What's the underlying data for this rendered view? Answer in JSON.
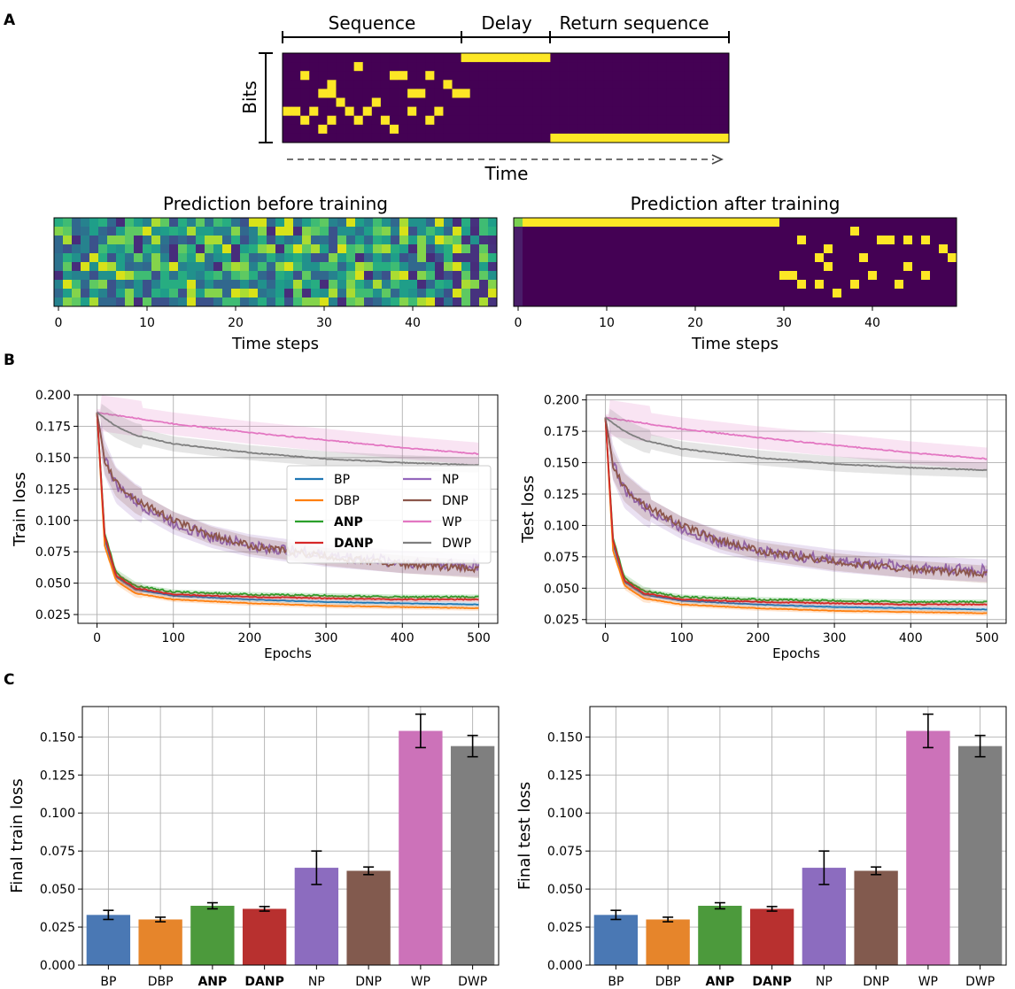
{
  "panels": {
    "a": "A",
    "b": "B",
    "c": "C"
  },
  "colors": {
    "BP": "#1f77b4",
    "DBP": "#ff7f0e",
    "ANP": "#2ca02c",
    "DANP": "#d62728",
    "NP": "#9467bd",
    "DNP": "#8c564b",
    "WP": "#e377c2",
    "DWP": "#7f7f7f",
    "bar_BP": "#4a78b4",
    "bar_DBP": "#e6852b",
    "bar_ANP": "#4c9a3c",
    "bar_DANP": "#b8302f",
    "bar_NP": "#8c6cbf",
    "bar_DNP": "#825a4e",
    "bar_WP": "#cc72b9",
    "bar_DWP": "#7f7f7f",
    "heat_bg": "#440154",
    "heat_on": "#fde725",
    "grid": "#b0b0b0"
  },
  "panel_a": {
    "seq_label": "Sequence",
    "delay_label": "Delay",
    "return_label": "Return sequence",
    "bits_label": "Bits",
    "time_label": "Time",
    "task": {
      "cols": 50,
      "rows": 10,
      "cells": [
        [
          2,
          2
        ],
        [
          8,
          1
        ],
        [
          12,
          2
        ],
        [
          13,
          2
        ],
        [
          14,
          4
        ],
        [
          15,
          4
        ],
        [
          16,
          2
        ],
        [
          4,
          4
        ],
        [
          5,
          4
        ],
        [
          19,
          4
        ],
        [
          5,
          3
        ],
        [
          18,
          3
        ],
        [
          20,
          4
        ],
        [
          1,
          6
        ],
        [
          6,
          5
        ],
        [
          10,
          5
        ],
        [
          14,
          6
        ],
        [
          17,
          6
        ],
        [
          3,
          6
        ],
        [
          2,
          7
        ],
        [
          7,
          6
        ],
        [
          11,
          7
        ],
        [
          16,
          7
        ],
        [
          0,
          6
        ],
        [
          8,
          7
        ],
        [
          4,
          8
        ],
        [
          12,
          8
        ],
        [
          5,
          7
        ],
        [
          9,
          6
        ]
      ],
      "delay_row": 0,
      "delay_cols": [
        20,
        30
      ],
      "return_row": 9,
      "return_cols": [
        30,
        50
      ]
    },
    "before": {
      "title": "Prediction before training",
      "xlabel": "Time steps",
      "xticks": [
        0,
        10,
        20,
        30,
        40
      ]
    },
    "after": {
      "title": "Prediction after training",
      "xlabel": "Time steps",
      "xticks": [
        0,
        10,
        20,
        30,
        40
      ],
      "cells": [
        [
          32,
          2
        ],
        [
          38,
          1
        ],
        [
          41,
          2
        ],
        [
          42,
          2
        ],
        [
          44,
          2
        ],
        [
          46,
          2
        ],
        [
          35,
          3
        ],
        [
          34,
          4
        ],
        [
          31,
          6
        ],
        [
          35,
          5
        ],
        [
          39,
          4
        ],
        [
          48,
          3
        ],
        [
          49,
          4
        ],
        [
          32,
          7
        ],
        [
          30,
          6
        ],
        [
          38,
          7
        ],
        [
          36,
          8
        ],
        [
          43,
          7
        ],
        [
          46,
          6
        ],
        [
          40,
          6
        ],
        [
          34,
          7
        ],
        [
          44,
          5
        ]
      ]
    }
  },
  "chart_data": [
    {
      "type": "line",
      "title": "",
      "xlabel": "Epochs",
      "ylabel": "Train loss",
      "xlim": [
        -25,
        525
      ],
      "ylim": [
        0.018,
        0.2
      ],
      "xticks": [
        0,
        100,
        200,
        300,
        400,
        500
      ],
      "yticks": [
        "0.025",
        "0.050",
        "0.075",
        "0.100",
        "0.125",
        "0.150",
        "0.175",
        "0.200"
      ],
      "legend_location": "center-right",
      "legend": [
        "BP",
        "DBP",
        "ANP",
        "DANP",
        "NP",
        "DNP",
        "WP",
        "DWP"
      ],
      "legend_bold": [
        "ANP",
        "DANP"
      ],
      "series": [
        {
          "name": "BP",
          "x": [
            0,
            10,
            25,
            50,
            100,
            200,
            300,
            400,
            500
          ],
          "y": [
            0.186,
            0.085,
            0.055,
            0.045,
            0.04,
            0.037,
            0.035,
            0.034,
            0.033
          ]
        },
        {
          "name": "DBP",
          "x": [
            0,
            10,
            25,
            50,
            100,
            200,
            300,
            400,
            500
          ],
          "y": [
            0.186,
            0.08,
            0.052,
            0.042,
            0.037,
            0.034,
            0.032,
            0.031,
            0.03
          ]
        },
        {
          "name": "ANP",
          "x": [
            0,
            10,
            25,
            50,
            100,
            200,
            300,
            400,
            500
          ],
          "y": [
            0.186,
            0.09,
            0.058,
            0.048,
            0.043,
            0.041,
            0.04,
            0.039,
            0.039
          ]
        },
        {
          "name": "DANP",
          "x": [
            0,
            10,
            25,
            50,
            100,
            200,
            300,
            400,
            500
          ],
          "y": [
            0.186,
            0.088,
            0.056,
            0.046,
            0.041,
            0.039,
            0.038,
            0.037,
            0.037
          ]
        },
        {
          "name": "NP",
          "x": [
            0,
            10,
            25,
            50,
            100,
            150,
            200,
            300,
            400,
            500
          ],
          "y": [
            0.186,
            0.15,
            0.128,
            0.115,
            0.098,
            0.087,
            0.08,
            0.072,
            0.067,
            0.064
          ]
        },
        {
          "name": "DNP",
          "x": [
            0,
            10,
            25,
            50,
            100,
            150,
            200,
            300,
            400,
            500
          ],
          "y": [
            0.186,
            0.148,
            0.13,
            0.117,
            0.1,
            0.088,
            0.08,
            0.071,
            0.065,
            0.061
          ]
        },
        {
          "name": "WP",
          "x": [
            0,
            100,
            200,
            300,
            400,
            500
          ],
          "y": [
            0.186,
            0.177,
            0.17,
            0.164,
            0.158,
            0.153
          ]
        },
        {
          "name": "DWP",
          "x": [
            0,
            25,
            50,
            100,
            200,
            300,
            400,
            500
          ],
          "y": [
            0.186,
            0.175,
            0.168,
            0.161,
            0.154,
            0.149,
            0.146,
            0.144
          ]
        }
      ]
    },
    {
      "type": "line",
      "title": "",
      "xlabel": "Epochs",
      "ylabel": "Test loss",
      "xlim": [
        -25,
        525
      ],
      "ylim": [
        0.022,
        0.204
      ],
      "xticks": [
        0,
        100,
        200,
        300,
        400,
        500
      ],
      "yticks": [
        "0.025",
        "0.050",
        "0.075",
        "0.100",
        "0.125",
        "0.150",
        "0.175",
        "0.200"
      ],
      "series": [
        {
          "name": "BP",
          "x": [
            0,
            10,
            25,
            50,
            100,
            200,
            300,
            400,
            500
          ],
          "y": [
            0.186,
            0.085,
            0.055,
            0.045,
            0.04,
            0.037,
            0.035,
            0.034,
            0.033
          ]
        },
        {
          "name": "DBP",
          "x": [
            0,
            10,
            25,
            50,
            100,
            200,
            300,
            400,
            500
          ],
          "y": [
            0.186,
            0.08,
            0.052,
            0.042,
            0.037,
            0.034,
            0.032,
            0.031,
            0.03
          ]
        },
        {
          "name": "ANP",
          "x": [
            0,
            10,
            25,
            50,
            100,
            200,
            300,
            400,
            500
          ],
          "y": [
            0.186,
            0.09,
            0.058,
            0.048,
            0.043,
            0.041,
            0.04,
            0.039,
            0.039
          ]
        },
        {
          "name": "DANP",
          "x": [
            0,
            10,
            25,
            50,
            100,
            200,
            300,
            400,
            500
          ],
          "y": [
            0.186,
            0.088,
            0.056,
            0.046,
            0.041,
            0.039,
            0.038,
            0.037,
            0.037
          ]
        },
        {
          "name": "NP",
          "x": [
            0,
            10,
            25,
            50,
            100,
            150,
            200,
            300,
            400,
            500
          ],
          "y": [
            0.186,
            0.15,
            0.128,
            0.115,
            0.098,
            0.087,
            0.08,
            0.072,
            0.067,
            0.064
          ]
        },
        {
          "name": "DNP",
          "x": [
            0,
            10,
            25,
            50,
            100,
            150,
            200,
            300,
            400,
            500
          ],
          "y": [
            0.186,
            0.148,
            0.13,
            0.117,
            0.1,
            0.088,
            0.08,
            0.071,
            0.065,
            0.061
          ]
        },
        {
          "name": "WP",
          "x": [
            0,
            100,
            200,
            300,
            400,
            500
          ],
          "y": [
            0.186,
            0.177,
            0.17,
            0.164,
            0.158,
            0.153
          ]
        },
        {
          "name": "DWP",
          "x": [
            0,
            25,
            50,
            100,
            200,
            300,
            400,
            500
          ],
          "y": [
            0.186,
            0.175,
            0.168,
            0.161,
            0.154,
            0.149,
            0.146,
            0.144
          ]
        }
      ]
    },
    {
      "type": "bar",
      "xlabel": "",
      "ylabel": "Final train loss",
      "ylim": [
        0,
        0.17
      ],
      "yticks": [
        "0.000",
        "0.025",
        "0.050",
        "0.075",
        "0.100",
        "0.125",
        "0.150"
      ],
      "categories": [
        "BP",
        "DBP",
        "ANP",
        "DANP",
        "NP",
        "DNP",
        "WP",
        "DWP"
      ],
      "bold_categories": [
        "ANP",
        "DANP"
      ],
      "values": [
        0.033,
        0.03,
        0.039,
        0.037,
        0.064,
        0.062,
        0.154,
        0.144
      ],
      "errors": [
        0.003,
        0.0015,
        0.002,
        0.0015,
        0.011,
        0.0025,
        0.011,
        0.007
      ]
    },
    {
      "type": "bar",
      "xlabel": "",
      "ylabel": "Final test loss",
      "ylim": [
        0,
        0.17
      ],
      "yticks": [
        "0.000",
        "0.025",
        "0.050",
        "0.075",
        "0.100",
        "0.125",
        "0.150"
      ],
      "categories": [
        "BP",
        "DBP",
        "ANP",
        "DANP",
        "NP",
        "DNP",
        "WP",
        "DWP"
      ],
      "bold_categories": [
        "ANP",
        "DANP"
      ],
      "values": [
        0.033,
        0.03,
        0.039,
        0.037,
        0.064,
        0.062,
        0.154,
        0.144
      ],
      "errors": [
        0.003,
        0.0015,
        0.002,
        0.0015,
        0.011,
        0.0025,
        0.011,
        0.007
      ]
    }
  ]
}
